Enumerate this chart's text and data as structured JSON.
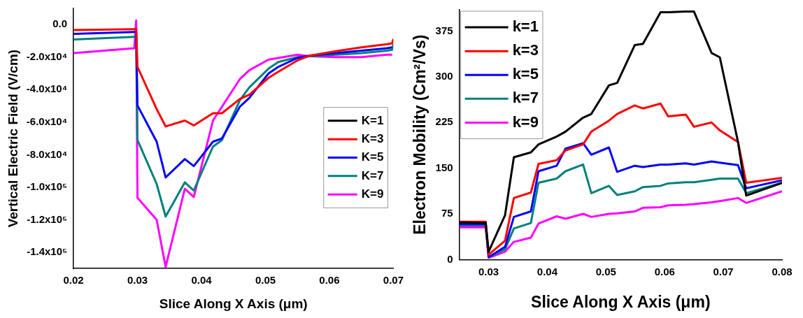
{
  "chart_data": [
    {
      "type": "line",
      "xlabel": "Slice Along X Axis (μm)",
      "ylabel": "Vertical Electric Field (V/cm)",
      "x": [
        0.02,
        0.0295,
        0.0298,
        0.03,
        0.033,
        0.0344,
        0.0374,
        0.0388,
        0.0418,
        0.0432,
        0.046,
        0.0475,
        0.0505,
        0.052,
        0.055,
        0.057,
        0.061,
        0.065,
        0.069,
        0.0698,
        0.07
      ],
      "xlim": [
        0.02,
        0.07
      ],
      "xticks": [
        0.02,
        0.03,
        0.04,
        0.05,
        0.06,
        0.07
      ],
      "ylim": [
        -150000,
        10000
      ],
      "yticks": [
        {
          "value": 0,
          "label": "0.0"
        },
        {
          "value": -20000,
          "label": "-2.0x10⁴"
        },
        {
          "value": -40000,
          "label": "-4.0x10⁴"
        },
        {
          "value": -60000,
          "label": "-6.0x10⁴"
        },
        {
          "value": -80000,
          "label": "-8.0x10⁴"
        },
        {
          "value": -100000,
          "label": "-1.0x10⁵"
        },
        {
          "value": -120000,
          "label": "-1.2x10⁵"
        },
        {
          "value": -140000,
          "label": "-1.4x10⁵"
        }
      ],
      "legend": "right",
      "grid": false,
      "series": [
        {
          "name": "K=1",
          "color": "#000000",
          "values": [
            null,
            null,
            null,
            null,
            null,
            null,
            null,
            null,
            null,
            null,
            null,
            null,
            null,
            null,
            null,
            null,
            null,
            null,
            null,
            null,
            null
          ]
        },
        {
          "name": "K=3",
          "color": "#ff0000",
          "values": [
            -3300,
            -2800,
            -2800,
            -26000,
            -52000,
            -62600,
            -59000,
            -62000,
            -54500,
            -54500,
            -45700,
            -43000,
            -32700,
            -29000,
            -22000,
            -19000,
            -16300,
            -14000,
            -12000,
            -11500,
            -8800
          ]
        },
        {
          "name": "K=5",
          "color": "#0000ff",
          "values": [
            -5700,
            -4500,
            -4500,
            -49700,
            -72000,
            -94000,
            -82700,
            -87000,
            -72000,
            -70000,
            -50500,
            -45000,
            -30000,
            -26000,
            -20500,
            -19000,
            -17500,
            -16000,
            -14500,
            -14000,
            null
          ]
        },
        {
          "name": "K=7",
          "color": "#008080",
          "values": [
            -9100,
            -7500,
            -7500,
            -71000,
            -98000,
            -118000,
            -97000,
            -102000,
            -75000,
            -71000,
            -46500,
            -38500,
            -27000,
            -23000,
            -20000,
            -19500,
            -18500,
            -17500,
            -16000,
            -15500,
            -12000
          ]
        },
        {
          "name": "K=9",
          "color": "#ff00ff",
          "values": [
            -17500,
            -14500,
            2600,
            -106500,
            -120000,
            -149000,
            -101000,
            -106000,
            -59000,
            -50500,
            -33500,
            -28000,
            -21500,
            -20500,
            -18500,
            -19500,
            -20000,
            -20000,
            -18500,
            -18500,
            null
          ]
        }
      ]
    },
    {
      "type": "line",
      "xlabel": "Slice Along X Axis (μm)",
      "ylabel": "Electron Mobility (Cm²/Vs)",
      "x": [
        0.025,
        0.0295,
        0.03,
        0.0328,
        0.0343,
        0.0372,
        0.0385,
        0.0416,
        0.0431,
        0.0461,
        0.0475,
        0.0505,
        0.0519,
        0.0549,
        0.0563,
        0.0593,
        0.0606,
        0.0636,
        0.065,
        0.068,
        0.0694,
        0.0725,
        0.0739,
        0.08
      ],
      "xlim": [
        0.025,
        0.08
      ],
      "xticks": [
        0.03,
        0.04,
        0.05,
        0.06,
        0.07,
        0.08
      ],
      "ylim": [
        0,
        410
      ],
      "yticks": [
        0,
        75,
        150,
        225,
        300,
        375
      ],
      "legend": "top left",
      "grid": false,
      "series": [
        {
          "name": "k=1",
          "color": "#000000",
          "values": [
            61,
            60,
            13,
            73,
            168,
            176,
            189,
            202,
            210,
            233,
            239,
            286,
            290,
            352,
            354,
            406,
            406,
            407,
            407,
            339,
            332,
            193,
            105,
            126
          ]
        },
        {
          "name": "k=3",
          "color": "#ff0000",
          "values": [
            62,
            62,
            8,
            31,
            101,
            110,
            157,
            163,
            179,
            189,
            210,
            228,
            239,
            253,
            248,
            256,
            235,
            238,
            218,
            225,
            212,
            193,
            126,
            134
          ]
        },
        {
          "name": "k=5",
          "color": "#0000ff",
          "values": [
            58,
            58,
            4,
            21,
            70,
            79,
            145,
            154,
            182,
            191,
            172,
            184,
            144,
            154,
            152,
            156,
            156,
            158,
            156,
            161,
            159,
            155,
            117,
            130
          ]
        },
        {
          "name": "k=7",
          "color": "#008080",
          "values": [
            56,
            56,
            4,
            17,
            51,
            60,
            126,
            133,
            145,
            156,
            109,
            121,
            106,
            112,
            119,
            121,
            125,
            127,
            127,
            131,
            133,
            133,
            109,
            126
          ]
        },
        {
          "name": "k=9",
          "color": "#ff00ff",
          "values": [
            53,
            53,
            3,
            13,
            29,
            36,
            59,
            71,
            67,
            75,
            70,
            75,
            76,
            79,
            85,
            86,
            89,
            90,
            91,
            94,
            96,
            101,
            93,
            112
          ]
        }
      ]
    }
  ]
}
